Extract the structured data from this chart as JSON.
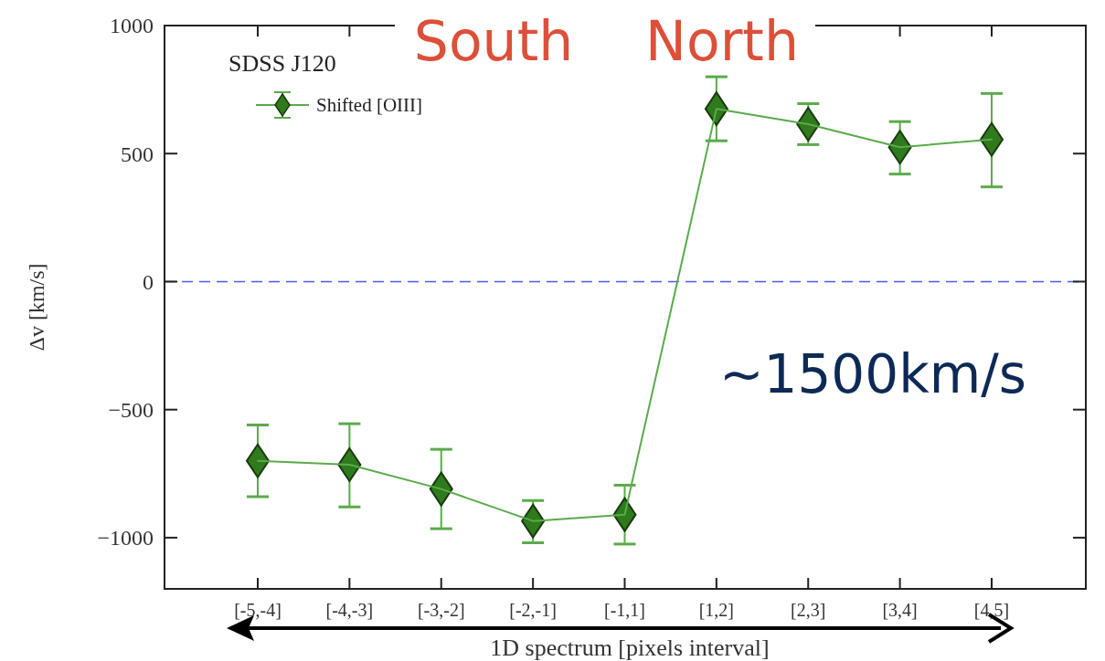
{
  "chart_data": {
    "type": "line",
    "title": "SDSS J120",
    "xlabel": "1D spectrum [pixels interval]",
    "ylabel": "Δv [km/s]",
    "categories": [
      "[-5,-4]",
      "[-4,-3]",
      "[-3,-2]",
      "[-2,-1]",
      "[-1,1]",
      "[1,2]",
      "[2,3]",
      "[3,4]",
      "[4,5]"
    ],
    "series": [
      {
        "name": "Shifted [OIII]",
        "color": "#5aab4a",
        "values": [
          -700,
          -715,
          -810,
          -935,
          -910,
          675,
          615,
          525,
          555
        ],
        "errors": [
          [
            -840,
            -560
          ],
          [
            -880,
            -555
          ],
          [
            -965,
            -655
          ],
          [
            -1020,
            -855
          ],
          [
            -1025,
            -795
          ],
          [
            550,
            800
          ],
          [
            535,
            695
          ],
          [
            420,
            625
          ],
          [
            370,
            735
          ]
        ]
      }
    ],
    "ylim": [
      -1200,
      1000
    ],
    "yticks": [
      {
        "value": -1000,
        "label": "−1000"
      },
      {
        "value": -500,
        "label": "−500"
      },
      0,
      500,
      1000
    ],
    "ref_lines": [
      {
        "axis": "y",
        "value": 0,
        "color": "#4a5cf0",
        "line_style": "dashed"
      }
    ],
    "marker": "diamond",
    "legend": "top left",
    "grid": false,
    "annotations": [
      "South",
      "North",
      "~1500km/s"
    ]
  }
}
